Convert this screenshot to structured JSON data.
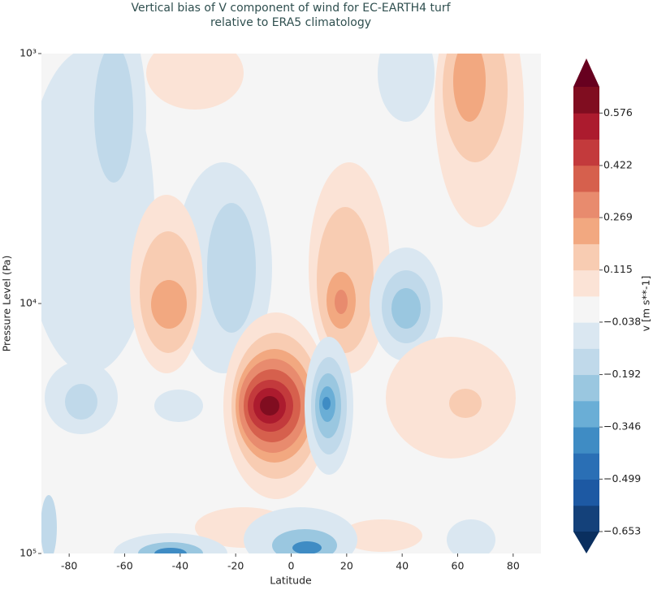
{
  "chart_data": {
    "type": "contour",
    "title": "Vertical bias of V component of wind for EC-EARTH4 turf",
    "subtitle": "relative to ERA5 climatology",
    "x_label": "Latitude",
    "y_label": "Pressure Level (Pa)",
    "xlim": [
      -90,
      90
    ],
    "xticks": [
      -80,
      -60,
      -40,
      -20,
      0,
      20,
      40,
      60,
      80
    ],
    "ylim": [
      1000,
      100000
    ],
    "log_y": true,
    "yticks": [
      {
        "value": 1000,
        "label": "10³"
      },
      {
        "value": 10000,
        "label": "10⁴"
      },
      {
        "value": 100000,
        "label": "10⁵"
      }
    ],
    "colorbar": {
      "label": "v [m s**-1]",
      "lim": [
        -0.653,
        0.653
      ],
      "ticks": [
        {
          "value": 0.576,
          "label": "0.576"
        },
        {
          "value": 0.422,
          "label": "0.422"
        },
        {
          "value": 0.269,
          "label": "0.269"
        },
        {
          "value": 0.115,
          "label": "0.115"
        },
        {
          "value": -0.038,
          "label": "−0.038"
        },
        {
          "value": -0.192,
          "label": "−0.192"
        },
        {
          "value": -0.346,
          "label": "−0.346"
        },
        {
          "value": -0.499,
          "label": "−0.499"
        },
        {
          "value": -0.653,
          "label": "−0.653"
        }
      ],
      "colors": [
        "#14417a",
        "#1d59a3",
        "#2a6fb5",
        "#3f8cc4",
        "#6aaed6",
        "#9ac7e0",
        "#c0d9ea",
        "#dae7f1",
        "#f5f5f5",
        "#fbe3d6",
        "#f8ccb2",
        "#f2a880",
        "#e88b6e",
        "#d6604d",
        "#c33a3c",
        "#ac1b2e",
        "#800d20"
      ],
      "extend_colors": [
        "#0a2f5f",
        "#67001f"
      ]
    }
  }
}
